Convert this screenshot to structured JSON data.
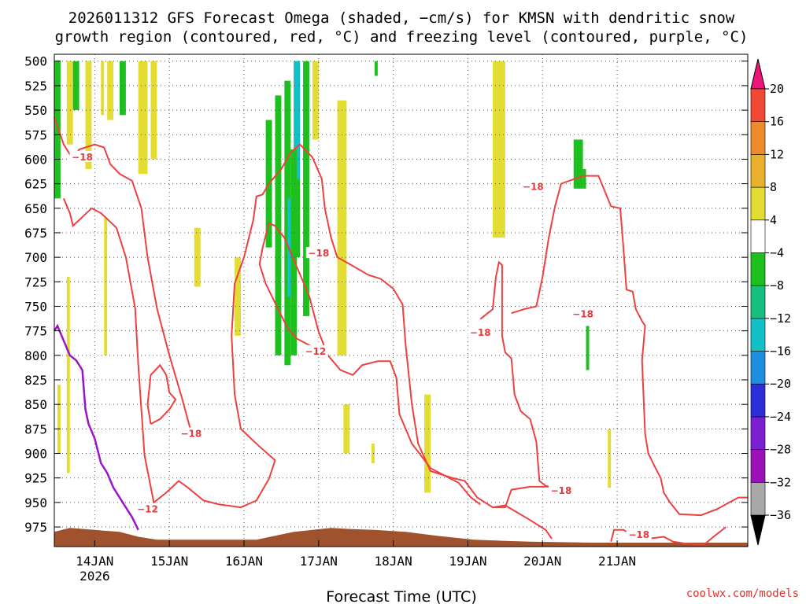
{
  "chart_data": {
    "type": "time-height",
    "title_line1": "2026011312 GFS Forecast Omega (shaded, −cm/s) for KMSN with dendritic snow",
    "title_line2": "growth region (contoured, red, °C) and freezing level (contoured, purple, °C)",
    "xlabel": "Forecast Time (UTC)",
    "credit": "coolwx.com/models",
    "x_ticks": [
      "14JAN",
      "15JAN",
      "16JAN",
      "17JAN",
      "18JAN",
      "19JAN",
      "20JAN",
      "21JAN"
    ],
    "x_sublabel": "2026",
    "xlim_hours": [
      -13,
      210
    ],
    "y_ticks": [
      500,
      525,
      550,
      575,
      600,
      625,
      650,
      675,
      700,
      725,
      750,
      775,
      800,
      825,
      850,
      875,
      900,
      925,
      950,
      975
    ],
    "ylim_hpa": [
      493,
      995
    ],
    "colorbar": {
      "levels": [
        -36,
        -32,
        -28,
        -24,
        -20,
        -16,
        -12,
        -8,
        -4,
        4,
        8,
        12,
        16,
        20
      ],
      "colors": [
        "#000000",
        "#a8a8a8",
        "#9c12b8",
        "#7b1fd0",
        "#2a2fd8",
        "#1e8ee0",
        "#14c0c8",
        "#16bf80",
        "#1ec020",
        "#ffffff",
        "#e3dc33",
        "#e8b02c",
        "#ee8a2a",
        "#f04a36",
        "#f0147a"
      ]
    },
    "omega_fill": {
      "yellow": [
        {
          "h": [
            -13,
            -12
          ],
          "p": [
            500,
            640
          ]
        },
        {
          "h": [
            -9,
            -7
          ],
          "p": [
            500,
            585
          ]
        },
        {
          "h": [
            -3,
            -1
          ],
          "p": [
            500,
            610
          ]
        },
        {
          "h": [
            2,
            3
          ],
          "p": [
            500,
            555
          ]
        },
        {
          "h": [
            4,
            6
          ],
          "p": [
            500,
            560
          ]
        },
        {
          "h": [
            14,
            17
          ],
          "p": [
            500,
            615
          ]
        },
        {
          "h": [
            18,
            20
          ],
          "p": [
            500,
            600
          ]
        },
        {
          "h": [
            -9,
            -8
          ],
          "p": [
            720,
            920
          ]
        },
        {
          "h": [
            -12,
            -11
          ],
          "p": [
            830,
            900
          ]
        },
        {
          "h": [
            3,
            4
          ],
          "p": [
            660,
            800
          ]
        },
        {
          "h": [
            32,
            34
          ],
          "p": [
            670,
            730
          ]
        },
        {
          "h": [
            45,
            47
          ],
          "p": [
            700,
            780
          ]
        },
        {
          "h": [
            61,
            63
          ],
          "p": [
            650,
            720
          ]
        },
        {
          "h": [
            78,
            81
          ],
          "p": [
            540,
            800
          ]
        },
        {
          "h": [
            80,
            82
          ],
          "p": [
            850,
            900
          ]
        },
        {
          "h": [
            70,
            72
          ],
          "p": [
            500,
            580
          ]
        },
        {
          "h": [
            89,
            90
          ],
          "p": [
            890,
            910
          ]
        },
        {
          "h": [
            106,
            108
          ],
          "p": [
            840,
            940
          ]
        },
        {
          "h": [
            128,
            132
          ],
          "p": [
            500,
            680
          ]
        },
        {
          "h": [
            165,
            166
          ],
          "p": [
            875,
            935
          ]
        }
      ],
      "green": [
        {
          "h": [
            -13,
            -11
          ],
          "p": [
            500,
            640
          ]
        },
        {
          "h": [
            -7,
            -5
          ],
          "p": [
            500,
            550
          ]
        },
        {
          "h": [
            8,
            10
          ],
          "p": [
            500,
            555
          ]
        },
        {
          "h": [
            58,
            60
          ],
          "p": [
            535,
            800
          ]
        },
        {
          "h": [
            61,
            63
          ],
          "p": [
            520,
            810
          ]
        },
        {
          "h": [
            63,
            65
          ],
          "p": [
            590,
            800
          ]
        },
        {
          "h": [
            55,
            57
          ],
          "p": [
            560,
            690
          ]
        },
        {
          "h": [
            64,
            66
          ],
          "p": [
            500,
            700
          ]
        },
        {
          "h": [
            67,
            69
          ],
          "p": [
            500,
            760
          ]
        },
        {
          "h": [
            90,
            91
          ],
          "p": [
            500,
            515
          ]
        },
        {
          "h": [
            154,
            157
          ],
          "p": [
            580,
            630
          ]
        },
        {
          "h": [
            157,
            158
          ],
          "p": [
            610,
            630
          ]
        },
        {
          "h": [
            158,
            159
          ],
          "p": [
            770,
            815
          ]
        }
      ],
      "teal": [
        {
          "h": [
            62,
            63
          ],
          "p": [
            640,
            740
          ]
        },
        {
          "h": [
            65,
            66
          ],
          "p": [
            560,
            620
          ]
        },
        {
          "h": [
            64,
            66
          ],
          "p": [
            500,
            590
          ]
        }
      ]
    },
    "contour_labels": [
      {
        "text": "−18",
        "h": -4,
        "p": 598
      },
      {
        "text": "−12",
        "h": 17,
        "p": 957
      },
      {
        "text": "−18",
        "h": 31,
        "p": 880
      },
      {
        "text": "−18",
        "h": 72,
        "p": 696
      },
      {
        "text": "−12",
        "h": 71,
        "p": 796
      },
      {
        "text": "−18",
        "h": 141,
        "p": 628
      },
      {
        "text": "−18",
        "h": 124,
        "p": 777
      },
      {
        "text": "−18",
        "h": 150,
        "p": 938
      },
      {
        "text": "−18",
        "h": 157,
        "p": 758
      },
      {
        "text": "−18",
        "h": 175,
        "p": 983
      }
    ],
    "dgz_contours": [
      [
        [
          -13,
          557
        ],
        [
          -10,
          585
        ],
        [
          -7,
          600
        ],
        [
          -5,
          590
        ],
        [
          0,
          585
        ],
        [
          3,
          588
        ],
        [
          5,
          605
        ],
        [
          8,
          615
        ],
        [
          12,
          622
        ],
        [
          15,
          650
        ],
        [
          17,
          700
        ],
        [
          20,
          752
        ],
        [
          24,
          800
        ],
        [
          28,
          843
        ],
        [
          31,
          878
        ]
      ],
      [
        [
          -10,
          640
        ],
        [
          -8,
          655
        ],
        [
          -7,
          668
        ],
        [
          -5,
          662
        ],
        [
          -1,
          650
        ],
        [
          2,
          655
        ],
        [
          7,
          670
        ],
        [
          10,
          700
        ],
        [
          13,
          752
        ],
        [
          14,
          810
        ],
        [
          16,
          902
        ],
        [
          19,
          950
        ],
        [
          23,
          940
        ],
        [
          27,
          928
        ],
        [
          30,
          935
        ],
        [
          35,
          948
        ],
        [
          40,
          952
        ],
        [
          47,
          955
        ],
        [
          52,
          948
        ],
        [
          56,
          926
        ],
        [
          58,
          907
        ],
        [
          53,
          893
        ],
        [
          47,
          875
        ],
        [
          45,
          840
        ],
        [
          44,
          780
        ],
        [
          45,
          727
        ],
        [
          48,
          700
        ],
        [
          51,
          662
        ],
        [
          52,
          638
        ],
        [
          54,
          636
        ],
        [
          56,
          625
        ],
        [
          60,
          610
        ],
        [
          63,
          593
        ],
        [
          66,
          585
        ],
        [
          70,
          598
        ],
        [
          73,
          620
        ],
        [
          74,
          650
        ],
        [
          76,
          680
        ],
        [
          78,
          700
        ],
        [
          82,
          707
        ],
        [
          88,
          718
        ],
        [
          92,
          722
        ],
        [
          96,
          732
        ],
        [
          99,
          748
        ],
        [
          100,
          790
        ],
        [
          102,
          850
        ],
        [
          104,
          890
        ],
        [
          108,
          918
        ],
        [
          115,
          925
        ],
        [
          119,
          928
        ],
        [
          123,
          945
        ],
        [
          128,
          955
        ],
        [
          132,
          953
        ],
        [
          140,
          968
        ],
        [
          145,
          978
        ],
        [
          147,
          987
        ]
      ],
      [
        [
          18,
          870
        ],
        [
          17,
          850
        ],
        [
          18,
          820
        ],
        [
          21,
          810
        ],
        [
          23,
          820
        ],
        [
          24,
          838
        ],
        [
          26,
          845
        ],
        [
          24,
          855
        ],
        [
          21,
          865
        ],
        [
          18,
          870
        ]
      ],
      [
        [
          71,
          793
        ],
        [
          65,
          783
        ],
        [
          62,
          772
        ],
        [
          59,
          753
        ],
        [
          55,
          727
        ],
        [
          53,
          707
        ],
        [
          54,
          690
        ],
        [
          56,
          665
        ],
        [
          58,
          668
        ],
        [
          61,
          680
        ],
        [
          65,
          710
        ],
        [
          69,
          740
        ],
        [
          72,
          776
        ],
        [
          75,
          800
        ],
        [
          79,
          815
        ],
        [
          83,
          820
        ],
        [
          86,
          810
        ],
        [
          91,
          806
        ],
        [
          95,
          806
        ],
        [
          97,
          823
        ],
        [
          98,
          860
        ],
        [
          102,
          890
        ],
        [
          108,
          915
        ],
        [
          114,
          925
        ],
        [
          117,
          930
        ],
        [
          121,
          945
        ],
        [
          124,
          952
        ]
      ],
      [
        [
          128,
          955
        ],
        [
          132,
          955
        ],
        [
          134,
          937
        ],
        [
          140,
          934
        ],
        [
          146,
          934
        ],
        [
          150,
          934
        ]
      ],
      [
        [
          134,
          757
        ],
        [
          138,
          753
        ],
        [
          142,
          750
        ],
        [
          144,
          720
        ],
        [
          145,
          700
        ],
        [
          146,
          680
        ],
        [
          148,
          648
        ],
        [
          150,
          625
        ],
        [
          157,
          617
        ],
        [
          160,
          617
        ],
        [
          162,
          617
        ],
        [
          166,
          648
        ],
        [
          169,
          650
        ],
        [
          170,
          690
        ],
        [
          171,
          733
        ],
        [
          173,
          735
        ],
        [
          174,
          753
        ],
        [
          176,
          765
        ],
        [
          177,
          770
        ],
        [
          176,
          805
        ],
        [
          177,
          880
        ],
        [
          178,
          900
        ],
        [
          180,
          913
        ],
        [
          182,
          925
        ],
        [
          183,
          940
        ],
        [
          185,
          950
        ],
        [
          188,
          962
        ],
        [
          195,
          963
        ],
        [
          200,
          957
        ],
        [
          207,
          945
        ],
        [
          210,
          945
        ]
      ],
      [
        [
          124,
          763
        ],
        [
          128,
          753
        ],
        [
          129,
          720
        ],
        [
          130,
          705
        ],
        [
          131,
          708
        ],
        [
          131,
          780
        ],
        [
          132,
          797
        ],
        [
          134,
          803
        ],
        [
          135,
          840
        ],
        [
          137,
          857
        ],
        [
          140,
          865
        ],
        [
          142,
          888
        ],
        [
          143,
          928
        ],
        [
          145,
          933
        ],
        [
          148,
          935
        ]
      ],
      [
        [
          166,
          990
        ],
        [
          167,
          978
        ],
        [
          170,
          978
        ],
        [
          174,
          985
        ],
        [
          178,
          987
        ],
        [
          183,
          985
        ],
        [
          186,
          990
        ],
        [
          190,
          992
        ],
        [
          196,
          993
        ],
        [
          199,
          985
        ],
        [
          203,
          975
        ]
      ]
    ],
    "freezing_level": [
      [
        -13,
        775
      ],
      [
        -12,
        770
      ],
      [
        -10,
        785
      ],
      [
        -8,
        800
      ],
      [
        -6,
        805
      ],
      [
        -4,
        815
      ],
      [
        -3,
        855
      ],
      [
        -2,
        870
      ],
      [
        0,
        885
      ],
      [
        2,
        910
      ],
      [
        4,
        920
      ],
      [
        6,
        935
      ],
      [
        9,
        950
      ],
      [
        12,
        965
      ],
      [
        14,
        978
      ]
    ],
    "terrain_note": "surface shaded brown near 970-990 hPa"
  }
}
